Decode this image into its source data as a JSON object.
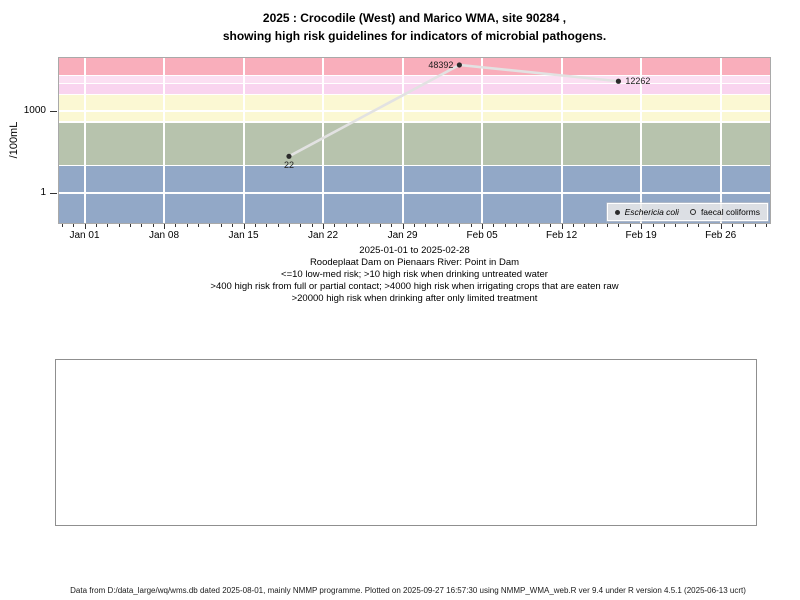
{
  "title": {
    "line1": "2025 : Crocodile (West) and Marico WMA, site 90284 ,",
    "line2": "showing high risk guidelines for indicators of microbial pathogens."
  },
  "subtitle_lines": [
    "2025-01-01 to 2025-02-28",
    "Roodeplaat Dam on Pienaars River: Point in Dam",
    "<=10 low-med risk; >10 high risk when drinking untreated water",
    ">400 high risk from full or partial contact; >4000 high risk when irrigating crops that are eaten raw",
    ">20000 high risk when drinking after only limited treatment"
  ],
  "footer": "Data from D:/data_large/wq/wms.db dated 2025-08-01, mainly NMMP programme. Plotted on 2025-09-27 16:57:30 using NMMP_WMA_web.R ver 9.4 under R version 4.5.1 (2025-06-13 ucrt)",
  "chart_data": {
    "type": "line",
    "y_scale": "log10",
    "ylabel": "/100mL",
    "x_range": [
      "2025-01-01",
      "2025-02-28"
    ],
    "x_tick_labels": [
      "Jan 01",
      "Jan 08",
      "Jan 15",
      "Jan 22",
      "Jan 29",
      "Feb 05",
      "Feb 12",
      "Feb 19",
      "Feb 26"
    ],
    "y_ticks": [
      {
        "value": 1,
        "label": "1"
      },
      {
        "value": 1000,
        "label": "1000"
      }
    ],
    "h_gridline_values": [
      1,
      10,
      400,
      1000,
      4000,
      10000,
      20000
    ],
    "series": [
      {
        "name": "Eschericia coli",
        "marker": "filled-circle",
        "points": [
          {
            "date": "2025-01-19",
            "value": 22,
            "label": "22",
            "label_side": "below"
          },
          {
            "date": "2025-02-03",
            "value": 48392,
            "label": "48392",
            "label_side": "left"
          },
          {
            "date": "2025-02-17",
            "value": 12262,
            "label": "12262",
            "label_side": "right"
          }
        ]
      },
      {
        "name": "faecal coliforms",
        "marker": "open-circle",
        "points": []
      }
    ],
    "risk_bands": [
      {
        "from": 20000,
        "to": null,
        "color": "#F9AEBB"
      },
      {
        "from": 10000,
        "to": 20000,
        "color": "#FBDFF2"
      },
      {
        "from": 4000,
        "to": 10000,
        "color": "#F9D4EF"
      },
      {
        "from": 400,
        "to": 4000,
        "color": "#FBF8D3"
      },
      {
        "from": 10,
        "to": 400,
        "color": "#B7C3AD"
      },
      {
        "from": null,
        "to": 10,
        "color": "#92A8C7"
      }
    ],
    "legend_position": "bottom-right",
    "colors": {
      "line": "#E2E2E2",
      "marker": "#2B2B2B",
      "gridline": "#FFFFFF"
    }
  }
}
